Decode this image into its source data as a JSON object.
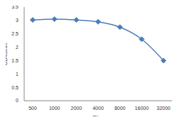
{
  "chart_data": {
    "type": "line",
    "x_label": "Titre",
    "y_label": "OD450nm",
    "categories": [
      "500",
      "1000",
      "2000",
      "4000",
      "8000",
      "16000",
      "32000"
    ],
    "values": [
      3.02,
      3.05,
      3.02,
      2.95,
      2.75,
      2.3,
      1.5
    ],
    "color": "#4a7ebb",
    "marker": "diamond",
    "ylim": [
      0,
      3.5
    ],
    "yticks": [
      0,
      0.5,
      1,
      1.5,
      2,
      2.5,
      3,
      3.5
    ],
    "grid": false
  }
}
